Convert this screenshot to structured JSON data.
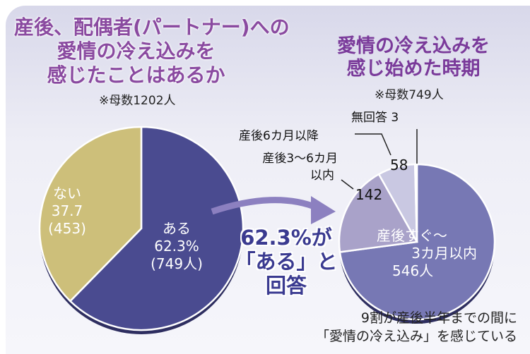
{
  "chart_data": [
    {
      "type": "pie",
      "title": "産後、配偶者(パートナー)への愛情の冷え込みを感じたことはあるか",
      "note": "※母数1202人",
      "slices": [
        {
          "label": "ある",
          "percent": 62.3,
          "count_text": "(749人)",
          "value": 749,
          "color": "#4a4b90"
        },
        {
          "label": "ない",
          "percent": 37.7,
          "count_text": "(453)",
          "value": 453,
          "color": "#cdbf7a"
        }
      ]
    },
    {
      "type": "pie",
      "title": "愛情の冷え込みを感じ始めた時期",
      "note": "※母数749人",
      "slices": [
        {
          "label": "産後すぐ〜3カ月以内",
          "value": 546,
          "value_text": "546人",
          "color": "#7778b4"
        },
        {
          "label": "産後3〜6カ月以内",
          "value": 142,
          "value_text": "142",
          "color": "#a9a2c9"
        },
        {
          "label": "産後6カ月以降",
          "value": 58,
          "value_text": "58",
          "color": "#c9c8e2"
        },
        {
          "label": "無回答",
          "value": 3,
          "value_text": "3",
          "color": "#eeeef6"
        }
      ]
    }
  ],
  "text": {
    "title1_l1": "産後、配偶者(パートナー)への",
    "title1_l2": "愛情の冷え込みを",
    "title1_l3": "感じたことはあるか",
    "title2_l1": "愛情の冷え込みを",
    "title2_l2": "感じ始めた時期",
    "yes_label": "ある",
    "yes_pct": "62.3%",
    "no_pct": "37.7",
    "sooner_l1": "産後すぐ〜",
    "sooner_l2": "3カ月以内",
    "mid_l1": "産後3〜6カ月",
    "mid_l2": "以内",
    "callout_l1": "62.3%が",
    "callout_l2": "「ある」と",
    "callout_l3": "回答",
    "foot_l1": "9割が産後半年までの間に",
    "foot_l2": "「愛情の冷え込み」を感じている"
  }
}
